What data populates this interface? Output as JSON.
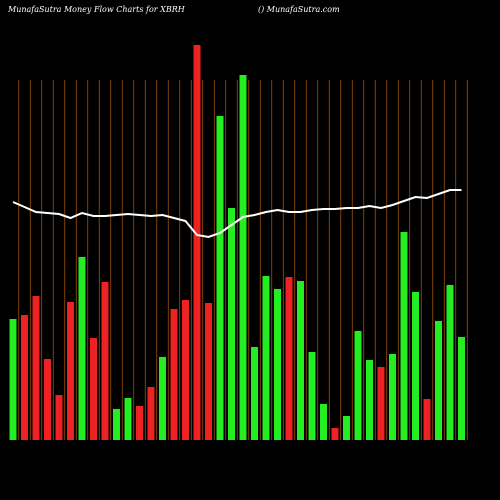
{
  "chart_data": {
    "type": "bar",
    "title": "MunafaSutra  Money Flow  Charts for XBRH",
    "subtitle": "() MunafaSutra.com",
    "categories": [
      null,
      null,
      null,
      null,
      null,
      null,
      null,
      null,
      null,
      null,
      null,
      null,
      null,
      null,
      null,
      null,
      null,
      null,
      null,
      null,
      null,
      null,
      null,
      null,
      null,
      null,
      null,
      null,
      null,
      null,
      null,
      null,
      null,
      null,
      null,
      null,
      null,
      null,
      null,
      null
    ],
    "series": [
      {
        "values": [
          121,
          125,
          144,
          81,
          45,
          138,
          183,
          102,
          158,
          31,
          42,
          34,
          53,
          83,
          131,
          140,
          395,
          137,
          324,
          232,
          365,
          93,
          164,
          151,
          163,
          159,
          88,
          36,
          12,
          24,
          109,
          80,
          73,
          86,
          208,
          148,
          41,
          119,
          155,
          103
        ],
        "colors": [
          "#22ee22",
          "#ee2222",
          "#ee2222",
          "#ee2222",
          "#ee2222",
          "#ee2222",
          "#22ee22",
          "#ee2222",
          "#ee2222",
          "#22ee22",
          "#22ee22",
          "#ee2222",
          "#ee2222",
          "#22ee22",
          "#ee2222",
          "#ee2222",
          "#ee2222",
          "#ee2222",
          "#22ee22",
          "#22ee22",
          "#22ee22",
          "#22ee22",
          "#22ee22",
          "#22ee22",
          "#ee2222",
          "#22ee22",
          "#22ee22",
          "#22ee22",
          "#ee2222",
          "#22ee22",
          "#22ee22",
          "#22ee22",
          "#ee2222",
          "#22ee22",
          "#22ee22",
          "#22ee22",
          "#ee2222",
          "#22ee22",
          "#22ee22",
          "#22ee22"
        ]
      },
      {
        "type": "line",
        "color": "#ffffff",
        "values": [
          238,
          233,
          228,
          227,
          226,
          222,
          227,
          224,
          224,
          225,
          226,
          225,
          224,
          225,
          222,
          219,
          205,
          203,
          207,
          215,
          223,
          225,
          228,
          230,
          228,
          228,
          230,
          231,
          231,
          232,
          232,
          234,
          232,
          235,
          239,
          243,
          242,
          246,
          250,
          250
        ]
      }
    ],
    "ylim": [
      0,
      400
    ]
  }
}
